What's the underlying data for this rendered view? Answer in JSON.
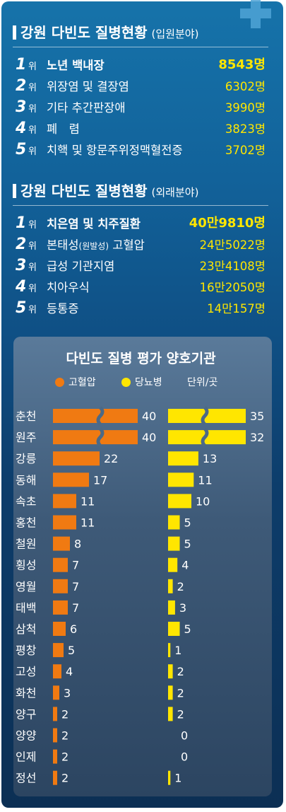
{
  "colors": {
    "hypertension": "#f07a12",
    "diabetes": "#ffe600",
    "value_highlight": "#ffe600"
  },
  "decoration": {
    "icon": "medical-cross-icon"
  },
  "inpatient": {
    "title": "강원 다빈도 질병현황",
    "subtitle": "(입원분야)",
    "rank_suffix": "위",
    "rows": [
      {
        "rank": "1",
        "name": "노년 백내장",
        "value": "8543명"
      },
      {
        "rank": "2",
        "name": "위장염 및 결장염",
        "value": "6302명"
      },
      {
        "rank": "3",
        "name": "기타 추간판장애",
        "value": "3990명"
      },
      {
        "rank": "4",
        "name": "폐　렴",
        "value": "3823명"
      },
      {
        "rank": "5",
        "name": "치핵 및 항문주위정맥혈전증",
        "value": "3702명"
      }
    ]
  },
  "outpatient": {
    "title": "강원 다빈도 질병현황",
    "subtitle": "(외래분야)",
    "rank_suffix": "위",
    "rows": [
      {
        "rank": "1",
        "name": "치은염 및 치주질환",
        "value": "40만9810명"
      },
      {
        "rank": "2",
        "name_main": "본태성",
        "name_small": "(원발성)",
        "name_tail": " 고혈압",
        "value": "24만5022명"
      },
      {
        "rank": "3",
        "name": "급성 기관지염",
        "value": "23만4108명"
      },
      {
        "rank": "4",
        "name": "치아우식",
        "value": "16만2050명"
      },
      {
        "rank": "5",
        "name": "등통증",
        "value": "14만157명"
      }
    ]
  },
  "chart_panel": {
    "title": "다빈도 질병 평가 양호기관",
    "unit": "단위/곳"
  },
  "chart_data": {
    "type": "bar",
    "orientation": "horizontal",
    "title": "다빈도 질병 평가 양호기관",
    "unit": "단위/곳",
    "categories": [
      "춘천",
      "원주",
      "강릉",
      "동해",
      "속초",
      "홍천",
      "철원",
      "횡성",
      "영월",
      "태백",
      "삼척",
      "평창",
      "고성",
      "화천",
      "양구",
      "양양",
      "인제",
      "정선"
    ],
    "series": [
      {
        "name": "고혈압",
        "color": "#f07a12",
        "values": [
          40,
          40,
          22,
          17,
          11,
          11,
          8,
          7,
          7,
          7,
          6,
          5,
          4,
          3,
          2,
          2,
          2,
          2
        ]
      },
      {
        "name": "당뇨병",
        "color": "#ffe600",
        "values": [
          35,
          32,
          13,
          11,
          10,
          5,
          5,
          4,
          2,
          3,
          5,
          1,
          2,
          2,
          2,
          0,
          0,
          1
        ]
      }
    ],
    "axis_break_categories": [
      "춘천",
      "원주"
    ],
    "legend_position": "top"
  }
}
